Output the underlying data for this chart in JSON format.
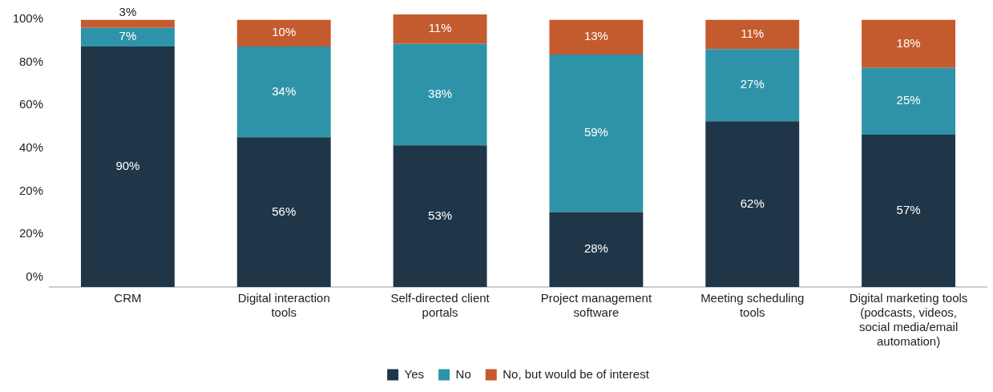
{
  "chart_data": {
    "type": "bar",
    "stacked": true,
    "categories": [
      "CRM",
      "Digital interaction tools",
      "Self-directed client portals",
      "Project management software",
      "Meeting scheduling tools",
      "Digital marketing tools (podcasts, videos, social media/email automation)"
    ],
    "series": [
      {
        "name": "Yes",
        "color": "#1f3649",
        "values": [
          90,
          56,
          53,
          28,
          62,
          57
        ],
        "value_labels": [
          "90%",
          "56%",
          "53%",
          "28%",
          "62%",
          "57%"
        ]
      },
      {
        "name": "No",
        "color": "#2e93a8",
        "values": [
          7,
          34,
          38,
          59,
          27,
          25
        ],
        "value_labels": [
          "7%",
          "34%",
          "38%",
          "59%",
          "27%",
          "25%"
        ]
      },
      {
        "name": "No, but would be of interest",
        "color": "#c45b2e",
        "values": [
          3,
          10,
          11,
          13,
          11,
          18
        ],
        "value_labels": [
          "3%",
          "10%",
          "11%",
          "13%",
          "11%",
          "18%"
        ]
      }
    ],
    "ylim": [
      0,
      102
    ],
    "annotations": [
      "0%",
      "20%",
      "20%",
      "40%",
      "60%",
      "80%",
      "100%"
    ],
    "grid": false,
    "legend": "bottom"
  }
}
